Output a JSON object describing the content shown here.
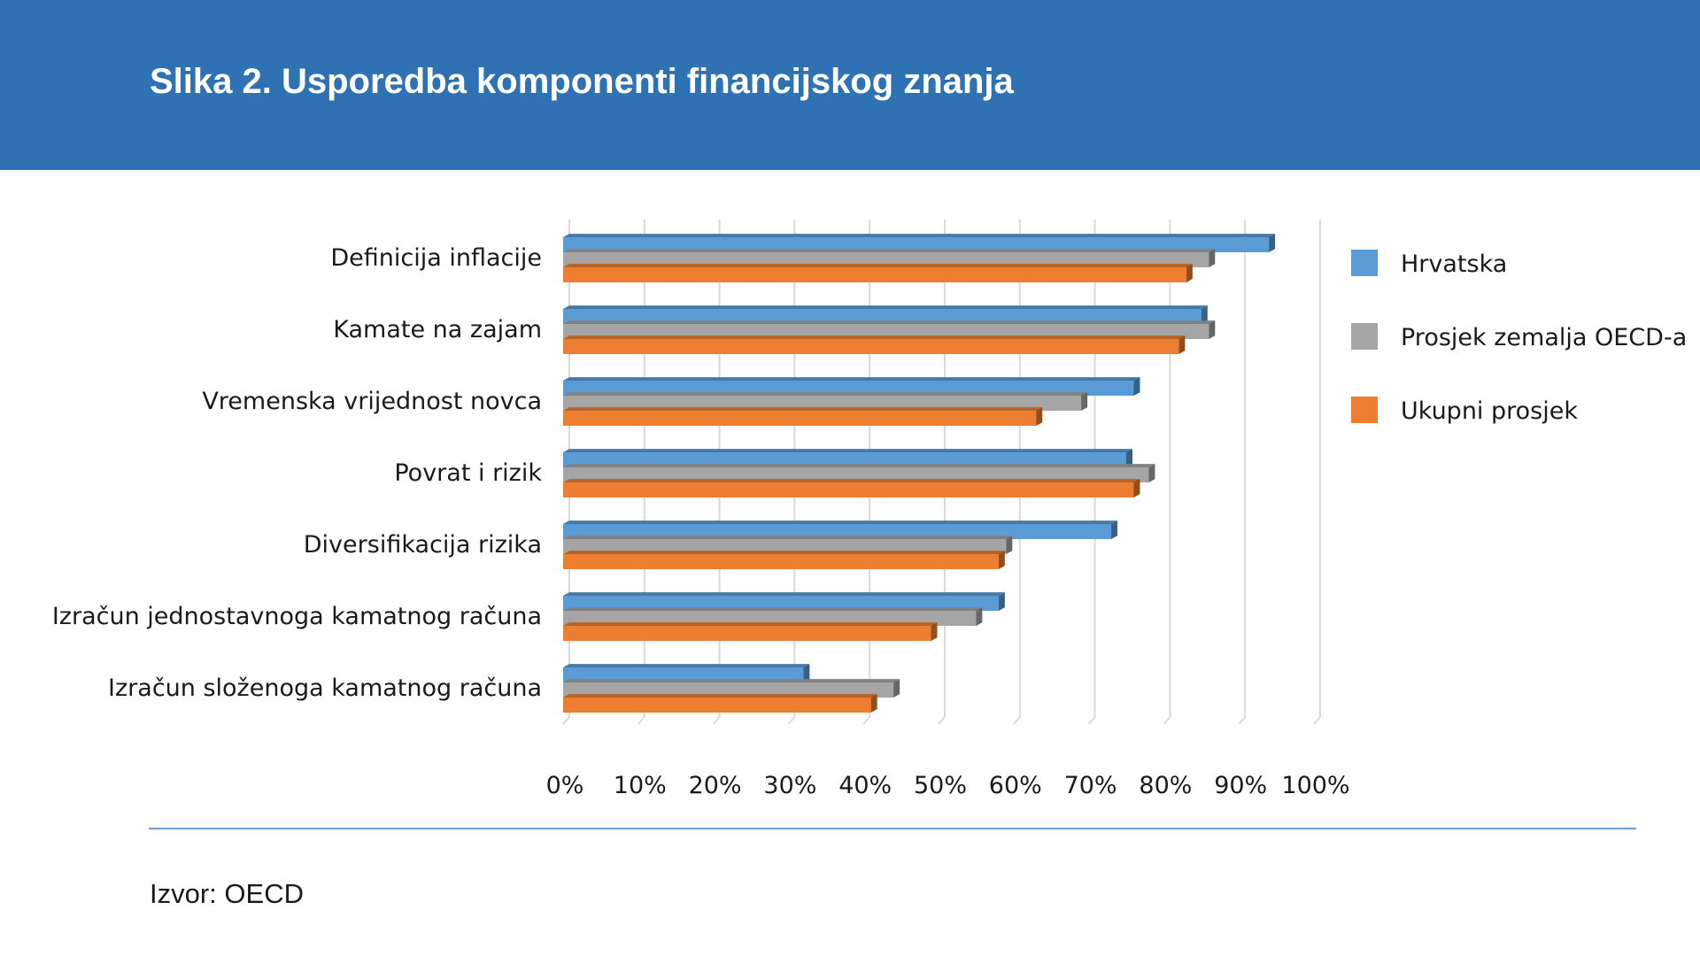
{
  "header": {
    "title": "Slika 2. Usporedba komponenti financijskog znanja"
  },
  "footer": {
    "source": "Izvor: OECD"
  },
  "colors": {
    "header_bg": "#2f72b3",
    "Hrvatska": "#5b9bd5",
    "Prosjek zemalja OECD-a": "#a5a5a5",
    "Ukupni prosjek": "#ed7d31"
  },
  "chart_data": {
    "type": "bar",
    "orientation": "horizontal",
    "title": "",
    "xlabel": "",
    "ylabel": "",
    "xlim": [
      0,
      100
    ],
    "grid": true,
    "legend_position": "right",
    "tick_labels": [
      "0%",
      "10%",
      "20%",
      "30%",
      "40%",
      "50%",
      "60%",
      "70%",
      "80%",
      "90%",
      "100%"
    ],
    "categories": [
      "Definicija inflacije",
      "Kamate na zajam",
      "Vremenska vrijednost novca",
      "Povrat i rizik",
      "Diversifikacija rizika",
      "Izračun jednostavnoga kamatnog računa",
      "Izračun složenoga kamatnog računa"
    ],
    "series": [
      {
        "name": "Hrvatska",
        "values": [
          94,
          85,
          76,
          75,
          73,
          58,
          32
        ]
      },
      {
        "name": "Prosjek zemalja OECD-a",
        "values": [
          86,
          86,
          69,
          78,
          59,
          55,
          44
        ]
      },
      {
        "name": "Ukupni prosjek",
        "values": [
          83,
          82,
          63,
          76,
          58,
          49,
          41
        ]
      }
    ]
  }
}
